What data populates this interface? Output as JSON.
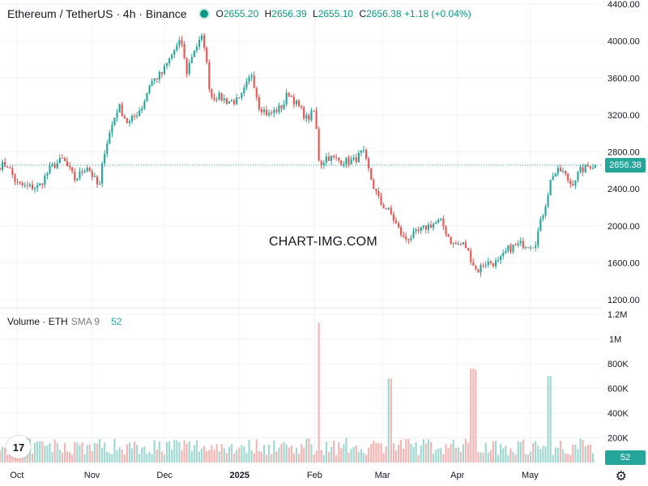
{
  "header": {
    "symbol": "Ethereum / TetherUS · 4h · Binance",
    "ohlc": {
      "o_label": "O",
      "o": "2655.20",
      "h_label": "H",
      "h": "2656.39",
      "l_label": "L",
      "l": "2655.10",
      "c_label": "C",
      "c": "2656.38",
      "change": "+1.18 (+0.04%)"
    }
  },
  "volume_legend": {
    "label": "Volume · ETH",
    "sma": "SMA 9",
    "value": "52"
  },
  "watermark": "CHART-IMG.COM",
  "last_price": "2656.38",
  "last_volume": "52",
  "colors": {
    "up": "#26a69a",
    "down": "#ef5350",
    "grid": "#f0f3fa",
    "price_tag": "#26a69a",
    "volume_up": "#9fd8d1",
    "volume_down": "#f5b3b1"
  },
  "icons": {
    "logo": "tradingview-logo-icon",
    "settings": "gear-icon"
  },
  "logo_text": "17",
  "settings_glyph": "⚙",
  "chart_data": [
    {
      "type": "candlestick",
      "ylim": [
        1200,
        4400
      ],
      "price_ticks": [
        "1200.00",
        "1600.00",
        "2000.00",
        "2400.00",
        "2800.00",
        "3200.00",
        "3600.00",
        "4000.00",
        "4400.00"
      ],
      "x_labels": [
        "Oct",
        "Nov",
        "Dec",
        "2025",
        "Feb",
        "Mar",
        "Apr",
        "May"
      ],
      "close_series_approx": [
        [
          "Sep 24",
          2650
        ],
        [
          "Sep 27",
          2660
        ],
        [
          "Oct 1",
          2450
        ],
        [
          "Oct 5",
          2420
        ],
        [
          "Oct 10",
          2420
        ],
        [
          "Oct 15",
          2630
        ],
        [
          "Oct 20",
          2720
        ],
        [
          "Oct 25",
          2500
        ],
        [
          "Oct 30",
          2650
        ],
        [
          "Nov 4",
          2400
        ],
        [
          "Nov 6",
          2800
        ],
        [
          "Nov 10",
          3150
        ],
        [
          "Nov 12",
          3300
        ],
        [
          "Nov 16",
          3100
        ],
        [
          "Nov 22",
          3300
        ],
        [
          "Nov 25",
          3550
        ],
        [
          "Nov 30",
          3650
        ],
        [
          "Dec 5",
          3900
        ],
        [
          "Dec 8",
          4000
        ],
        [
          "Dec 10",
          3650
        ],
        [
          "Dec 13",
          3900
        ],
        [
          "Dec 17",
          4050
        ],
        [
          "Dec 20",
          3400
        ],
        [
          "Dec 23",
          3400
        ],
        [
          "Dec 27",
          3350
        ],
        [
          "Jan 1",
          3350
        ],
        [
          "Jan 6",
          3650
        ],
        [
          "Jan 9",
          3300
        ],
        [
          "Jan 13",
          3200
        ],
        [
          "Jan 19",
          3300
        ],
        [
          "Jan 21",
          3450
        ],
        [
          "Jan 25",
          3300
        ],
        [
          "Jan 29",
          3150
        ],
        [
          "Feb 1",
          3250
        ],
        [
          "Feb 3",
          2650
        ],
        [
          "Feb 6",
          2750
        ],
        [
          "Feb 12",
          2700
        ],
        [
          "Feb 17",
          2700
        ],
        [
          "Feb 21",
          2800
        ],
        [
          "Feb 25",
          2450
        ],
        [
          "Feb 28",
          2250
        ],
        [
          "Mar 4",
          2150
        ],
        [
          "Mar 10",
          1850
        ],
        [
          "Mar 14",
          1900
        ],
        [
          "Mar 20",
          2000
        ],
        [
          "Mar 25",
          2050
        ],
        [
          "Mar 30",
          1800
        ],
        [
          "Apr 4",
          1800
        ],
        [
          "Apr 9",
          1500
        ],
        [
          "Apr 12",
          1600
        ],
        [
          "Apr 18",
          1600
        ],
        [
          "Apr 22",
          1750
        ],
        [
          "Apr 27",
          1800
        ],
        [
          "May 3",
          1800
        ],
        [
          "May 8",
          2300
        ],
        [
          "May 10",
          2550
        ],
        [
          "May 14",
          2600
        ],
        [
          "May 18",
          2450
        ],
        [
          "May 22",
          2600
        ],
        [
          "May 26",
          2656.38
        ]
      ]
    },
    {
      "type": "bar",
      "name": "Volume",
      "ylim": [
        0,
        1200000
      ],
      "ticks": [
        "200K",
        "400K",
        "600K",
        "800K",
        "1M",
        "1.2M"
      ],
      "spikes_approx": [
        [
          "Feb 3",
          1130000
        ],
        [
          "Apr 7",
          760000
        ],
        [
          "Apr 9",
          750000
        ],
        [
          "May 9",
          700000
        ],
        [
          "Mar 4",
          680000
        ]
      ]
    }
  ]
}
